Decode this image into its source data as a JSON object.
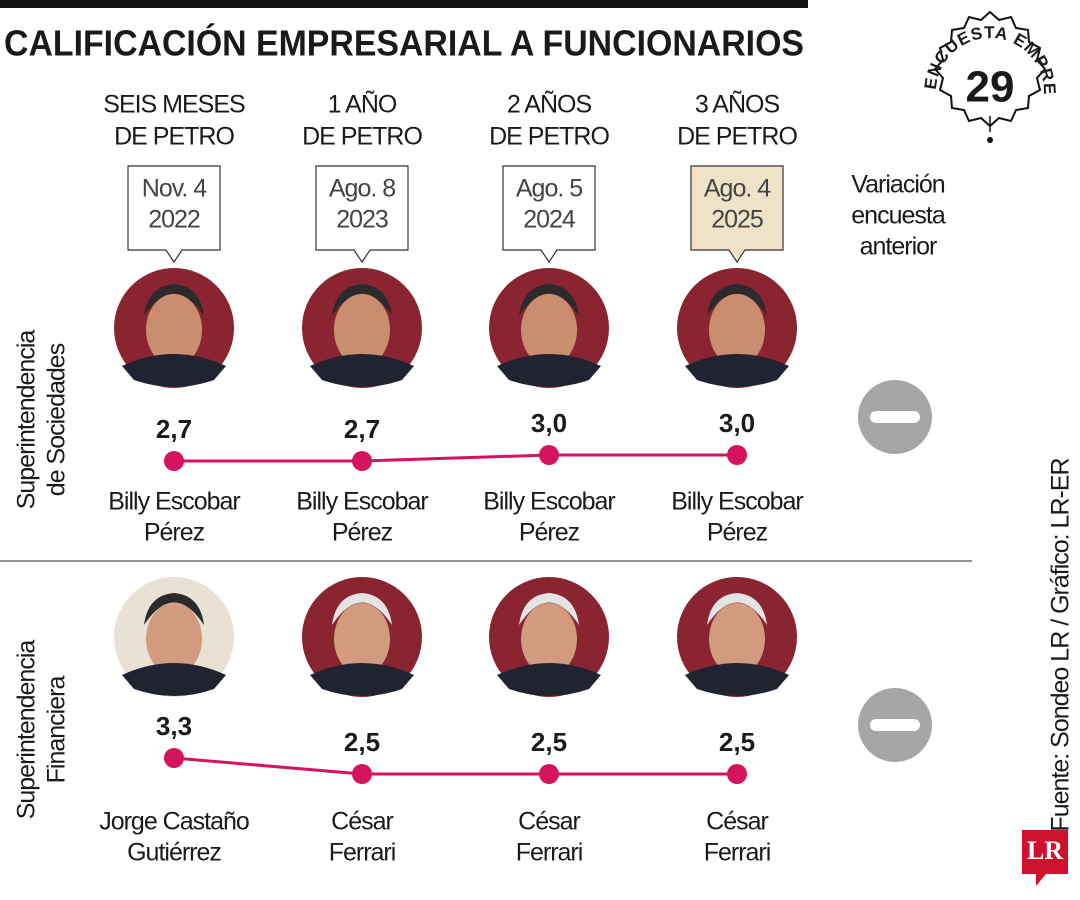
{
  "title": "CALIFICACIÓN EMPRESARIAL A FUNCIONARIOS",
  "badge": {
    "text": "ENCUESTA EMPRESARIAL",
    "number": "29"
  },
  "periods": [
    {
      "label": [
        "SEIS MESES",
        "DE PETRO"
      ],
      "date": [
        "Nov. 4",
        "2022"
      ]
    },
    {
      "label": [
        "1 AÑO",
        "DE PETRO"
      ],
      "date": [
        "Ago. 8",
        "2023"
      ]
    },
    {
      "label": [
        "2 AÑOS",
        "DE PETRO"
      ],
      "date": [
        "Ago. 5",
        "2024"
      ]
    },
    {
      "label": [
        "3 AÑOS",
        "DE PETRO"
      ],
      "date": [
        "Ago. 4",
        "2025"
      ]
    }
  ],
  "variation_header": [
    "Variación",
    "encuesta",
    "anterior"
  ],
  "source": "Fuente: Sondeo LR / Gráfico: LR-ER",
  "logo": "LR",
  "chart_data": [
    {
      "type": "line",
      "title": [
        "Superintendencia",
        "de Sociedades"
      ],
      "categories": [
        [
          "Billy Escobar",
          "Pérez"
        ],
        [
          "Billy Escobar",
          "Pérez"
        ],
        [
          "Billy Escobar",
          "Pérez"
        ],
        [
          "Billy Escobar",
          "Pérez"
        ]
      ],
      "values": [
        2.7,
        2.7,
        3.0,
        3.0
      ],
      "value_labels": [
        "2,7",
        "2,7",
        "3,0",
        "3,0"
      ],
      "color": "#d6135f"
    },
    {
      "type": "line",
      "title": [
        "Superintendencia",
        "Financiera"
      ],
      "categories": [
        [
          "Jorge Castaño",
          "Gutiérrez"
        ],
        [
          "César",
          "Ferrari"
        ],
        [
          "César",
          "Ferrari"
        ],
        [
          "César",
          "Ferrari"
        ]
      ],
      "values": [
        3.3,
        2.5,
        2.5,
        2.5
      ],
      "value_labels": [
        "3,3",
        "2,5",
        "2,5",
        "2,5"
      ],
      "color": "#d6135f"
    }
  ]
}
